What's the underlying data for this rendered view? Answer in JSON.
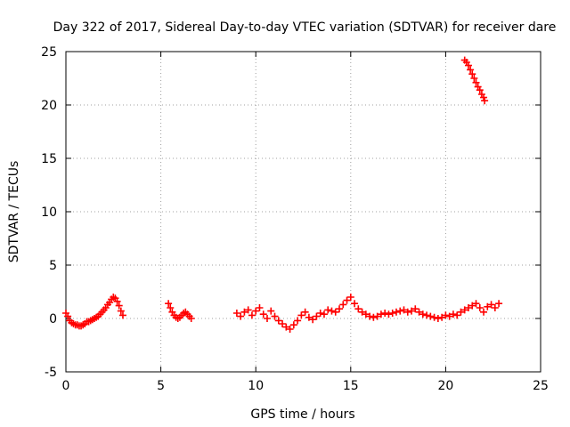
{
  "chart_data": {
    "type": "scatter",
    "title": "Day 322 of 2017, Sidereal Day-to-day VTEC variation (SDTVAR) for receiver dare",
    "xlabel": "GPS time / hours",
    "ylabel": "SDTVAR / TECUs",
    "xlim": [
      0,
      25
    ],
    "ylim": [
      -5,
      25
    ],
    "xticks": [
      0,
      5,
      10,
      15,
      20,
      25
    ],
    "yticks": [
      -5,
      0,
      5,
      10,
      15,
      20,
      25
    ],
    "grid": true,
    "marker": "+",
    "color": "#ff0000",
    "series": [
      {
        "name": "SDTVAR",
        "x": [
          0.0,
          0.1,
          0.2,
          0.3,
          0.4,
          0.5,
          0.6,
          0.7,
          0.8,
          0.9,
          1.0,
          1.1,
          1.2,
          1.3,
          1.4,
          1.5,
          1.6,
          1.7,
          1.8,
          1.9,
          2.0,
          2.1,
          2.2,
          2.3,
          2.4,
          2.5,
          2.6,
          2.7,
          2.8,
          2.9,
          3.0,
          5.4,
          5.5,
          5.6,
          5.7,
          5.8,
          5.9,
          6.0,
          6.1,
          6.2,
          6.3,
          6.4,
          6.5,
          6.6,
          9.0,
          9.2,
          9.4,
          9.6,
          9.8,
          10.0,
          10.2,
          10.4,
          10.6,
          10.8,
          11.0,
          11.2,
          11.4,
          11.6,
          11.8,
          12.0,
          12.2,
          12.4,
          12.6,
          12.8,
          13.0,
          13.2,
          13.4,
          13.6,
          13.8,
          14.0,
          14.2,
          14.4,
          14.6,
          14.8,
          15.0,
          15.2,
          15.4,
          15.6,
          15.8,
          16.0,
          16.2,
          16.4,
          16.6,
          16.8,
          17.0,
          17.2,
          17.4,
          17.6,
          17.8,
          18.0,
          18.2,
          18.4,
          18.6,
          18.8,
          19.0,
          19.2,
          19.4,
          19.6,
          19.8,
          20.0,
          20.2,
          20.4,
          20.6,
          20.8,
          21.0,
          21.2,
          21.4,
          21.6,
          21.8,
          22.0,
          22.2,
          22.4,
          22.6,
          22.8,
          21.0,
          21.1,
          21.2,
          21.3,
          21.4,
          21.5,
          21.6,
          21.7,
          21.8,
          21.9,
          22.0,
          22.05
        ],
        "y": [
          0.5,
          0.2,
          -0.2,
          -0.4,
          -0.5,
          -0.6,
          -0.6,
          -0.7,
          -0.7,
          -0.6,
          -0.5,
          -0.3,
          -0.3,
          -0.2,
          -0.1,
          0.0,
          0.1,
          0.2,
          0.4,
          0.6,
          0.8,
          1.0,
          1.3,
          1.5,
          1.8,
          2.0,
          1.9,
          1.6,
          1.2,
          0.7,
          0.3,
          1.4,
          1.0,
          0.6,
          0.3,
          0.1,
          0.0,
          0.1,
          0.3,
          0.5,
          0.6,
          0.4,
          0.2,
          0.0,
          0.5,
          0.2,
          0.6,
          0.8,
          0.3,
          0.7,
          1.0,
          0.4,
          0.0,
          0.7,
          0.2,
          -0.2,
          -0.5,
          -0.8,
          -1.0,
          -0.6,
          -0.2,
          0.3,
          0.6,
          0.1,
          -0.1,
          0.2,
          0.5,
          0.4,
          0.8,
          0.7,
          0.6,
          0.9,
          1.3,
          1.7,
          2.0,
          1.4,
          0.9,
          0.6,
          0.4,
          0.2,
          0.1,
          0.2,
          0.4,
          0.5,
          0.4,
          0.5,
          0.6,
          0.7,
          0.8,
          0.6,
          0.7,
          0.9,
          0.6,
          0.4,
          0.3,
          0.2,
          0.1,
          0.0,
          0.1,
          0.3,
          0.2,
          0.4,
          0.3,
          0.6,
          0.8,
          1.0,
          1.2,
          1.4,
          1.0,
          0.6,
          1.1,
          1.3,
          1.0,
          1.4,
          24.2,
          24.0,
          23.7,
          23.3,
          22.9,
          22.5,
          22.1,
          21.7,
          21.4,
          21.0,
          20.7,
          20.4
        ]
      }
    ]
  }
}
